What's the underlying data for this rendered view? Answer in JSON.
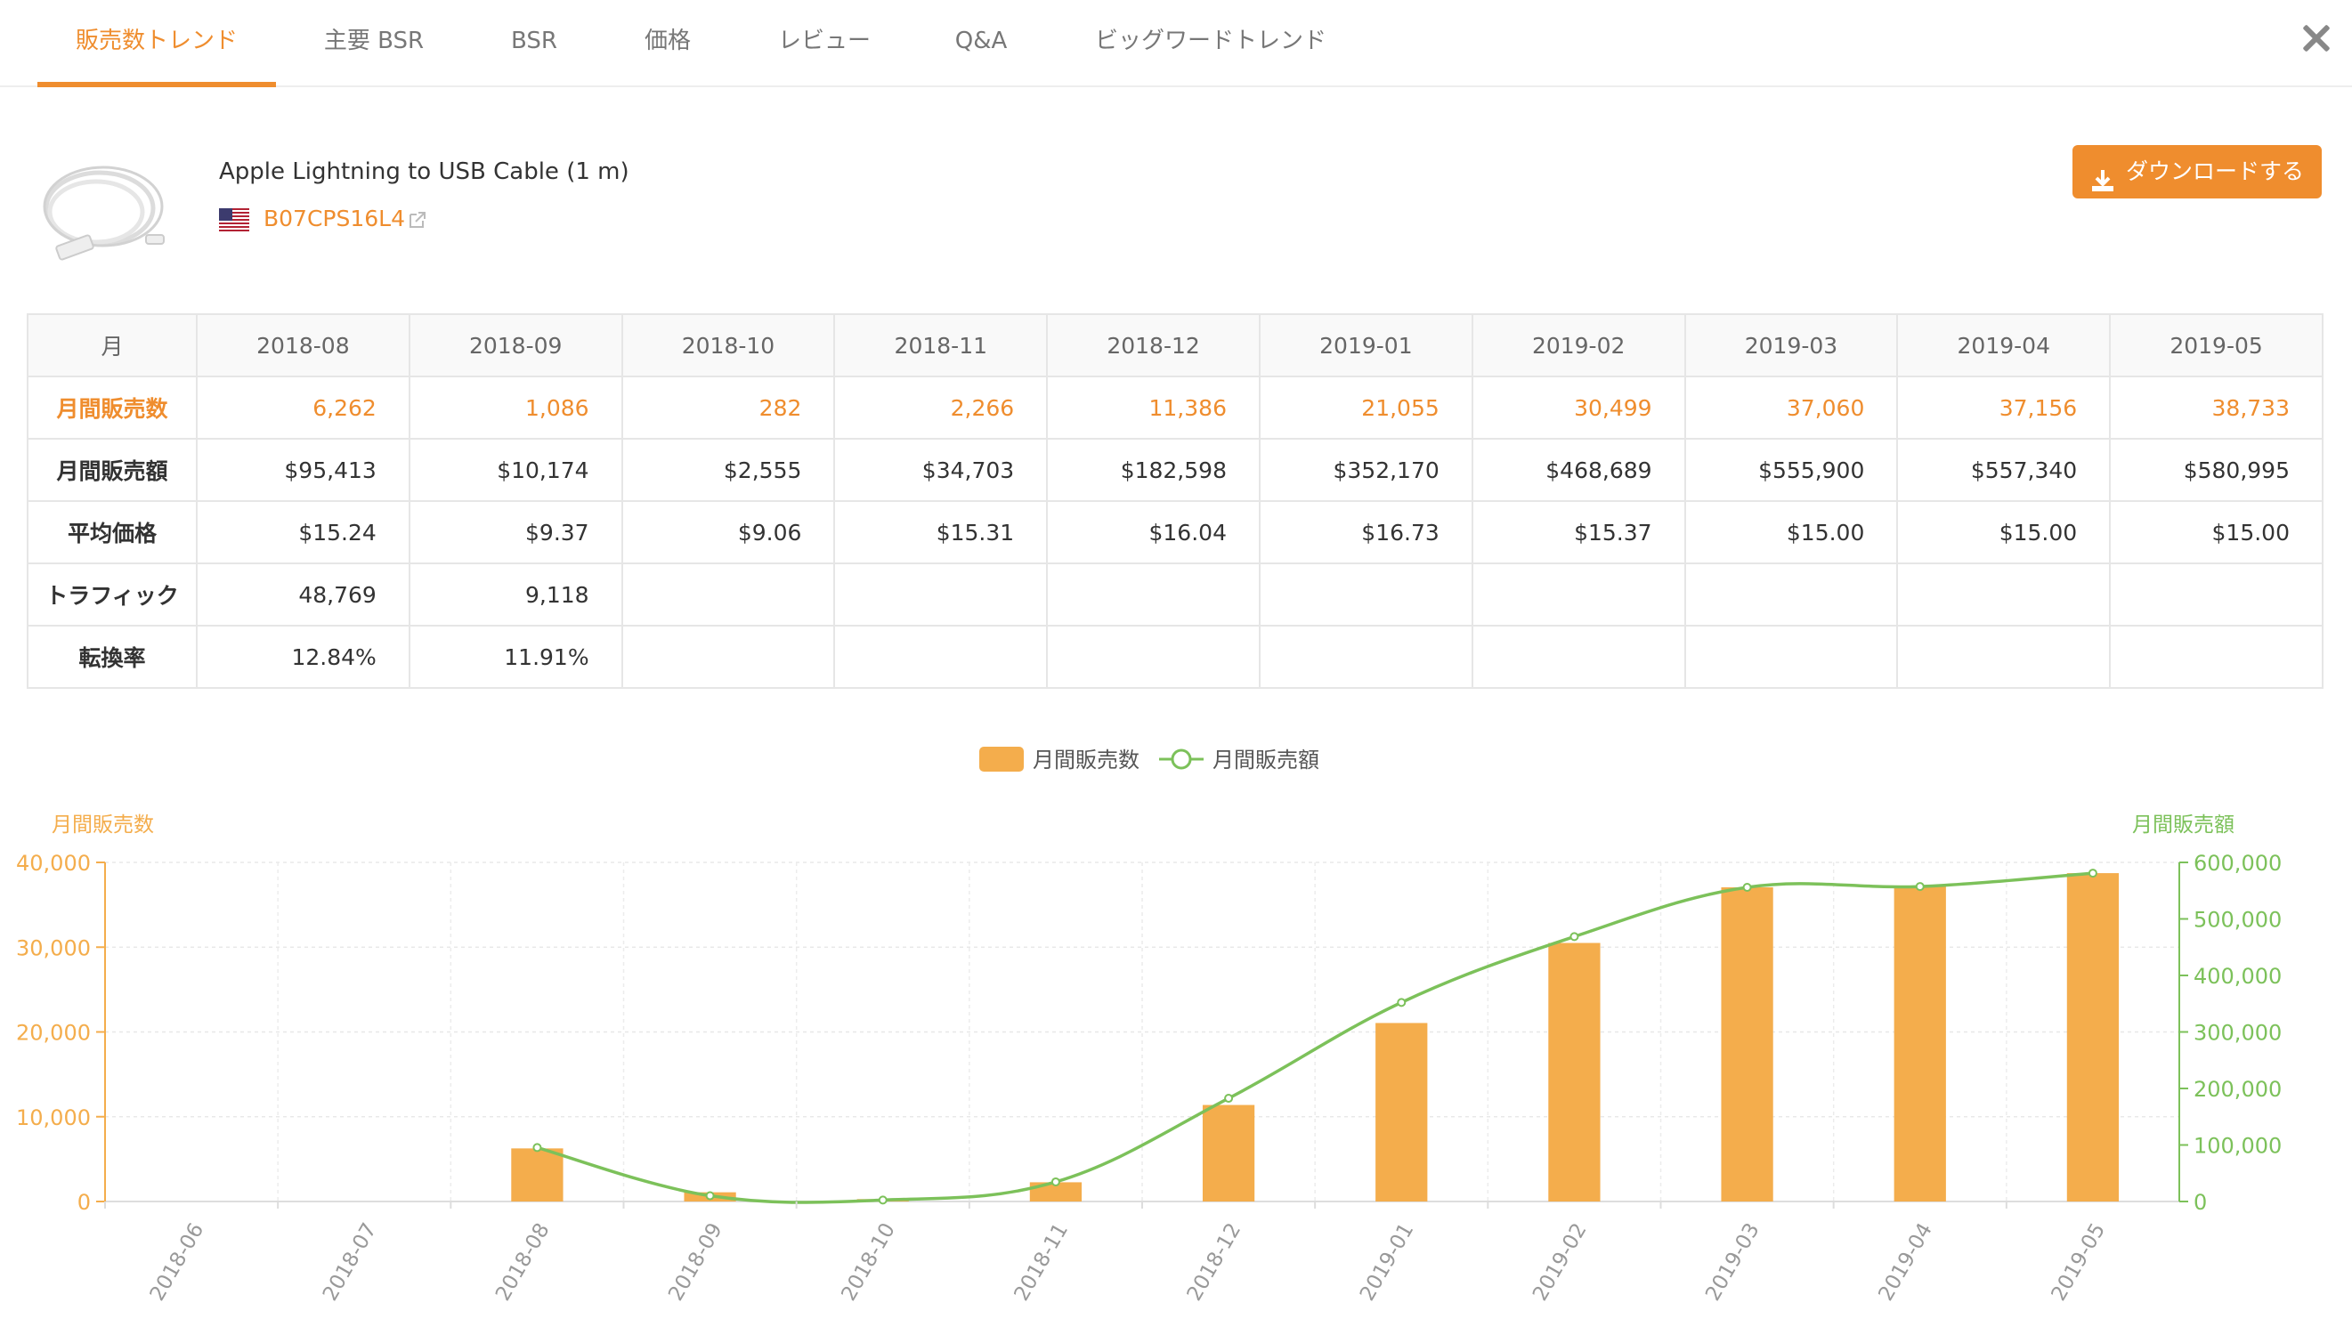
{
  "tabs": [
    {
      "label": "販売数トレンド",
      "active": true
    },
    {
      "label": "主要 BSR",
      "active": false
    },
    {
      "label": "BSR",
      "active": false
    },
    {
      "label": "価格",
      "active": false
    },
    {
      "label": "レビュー",
      "active": false
    },
    {
      "label": "Q&A",
      "active": false
    },
    {
      "label": "ビッグワードトレンド",
      "active": false
    }
  ],
  "close_icon": "close-icon",
  "product": {
    "title": "Apple Lightning to USB Cable (1 m)",
    "asin": "B07CPS16L4",
    "flag_icon": "us-flag-icon",
    "link_icon": "external-link-icon"
  },
  "download_button": {
    "label": "ダウンロードする",
    "icon": "download-icon"
  },
  "colors": {
    "accent": "#ef8d2e",
    "bar": "#f4ad4c",
    "line": "#7cc15a"
  },
  "table": {
    "corner": "月",
    "months": [
      "2018-08",
      "2018-09",
      "2018-10",
      "2018-11",
      "2018-12",
      "2019-01",
      "2019-02",
      "2019-03",
      "2019-04",
      "2019-05"
    ],
    "rows": [
      {
        "label": "月間販売数",
        "highlight": true,
        "cells": [
          "6,262",
          "1,086",
          "282",
          "2,266",
          "11,386",
          "21,055",
          "30,499",
          "37,060",
          "37,156",
          "38,733"
        ]
      },
      {
        "label": "月間販売額",
        "highlight": false,
        "cells": [
          "$95,413",
          "$10,174",
          "$2,555",
          "$34,703",
          "$182,598",
          "$352,170",
          "$468,689",
          "$555,900",
          "$557,340",
          "$580,995"
        ]
      },
      {
        "label": "平均価格",
        "highlight": false,
        "cells": [
          "$15.24",
          "$9.37",
          "$9.06",
          "$15.31",
          "$16.04",
          "$16.73",
          "$15.37",
          "$15.00",
          "$15.00",
          "$15.00"
        ]
      },
      {
        "label": "トラフィック",
        "highlight": false,
        "cells": [
          "48,769",
          "9,118",
          "",
          "",
          "",
          "",
          "",
          "",
          "",
          ""
        ]
      },
      {
        "label": "転換率",
        "highlight": false,
        "cells": [
          "12.84%",
          "11.91%",
          "",
          "",
          "",
          "",
          "",
          "",
          "",
          ""
        ]
      }
    ]
  },
  "chart_data": {
    "type": "bar",
    "categories": [
      "2018-06",
      "2018-07",
      "2018-08",
      "2018-09",
      "2018-10",
      "2018-11",
      "2018-12",
      "2019-01",
      "2019-02",
      "2019-03",
      "2019-04",
      "2019-05"
    ],
    "series": [
      {
        "name": "月間販売数",
        "type": "bar",
        "axis": "left",
        "values": [
          null,
          null,
          6262,
          1086,
          282,
          2266,
          11386,
          21055,
          30499,
          37060,
          37156,
          38733
        ]
      },
      {
        "name": "月間販売額",
        "type": "line",
        "axis": "right",
        "values": [
          null,
          null,
          95413,
          10174,
          2555,
          34703,
          182598,
          352170,
          468689,
          555900,
          557340,
          580995
        ]
      }
    ],
    "y_left": {
      "label": "月間販売数",
      "range": [
        0,
        40000
      ],
      "ticks": [
        "40,000",
        "30,000",
        "20,000",
        "10,000",
        "0"
      ]
    },
    "y_right": {
      "label": "月間販売額",
      "range": [
        0,
        600000
      ],
      "ticks": [
        "600,000",
        "500,000",
        "400,000",
        "300,000",
        "200,000",
        "100,000",
        "0"
      ]
    },
    "legend": {
      "placement": "top-center"
    },
    "grid": true
  }
}
